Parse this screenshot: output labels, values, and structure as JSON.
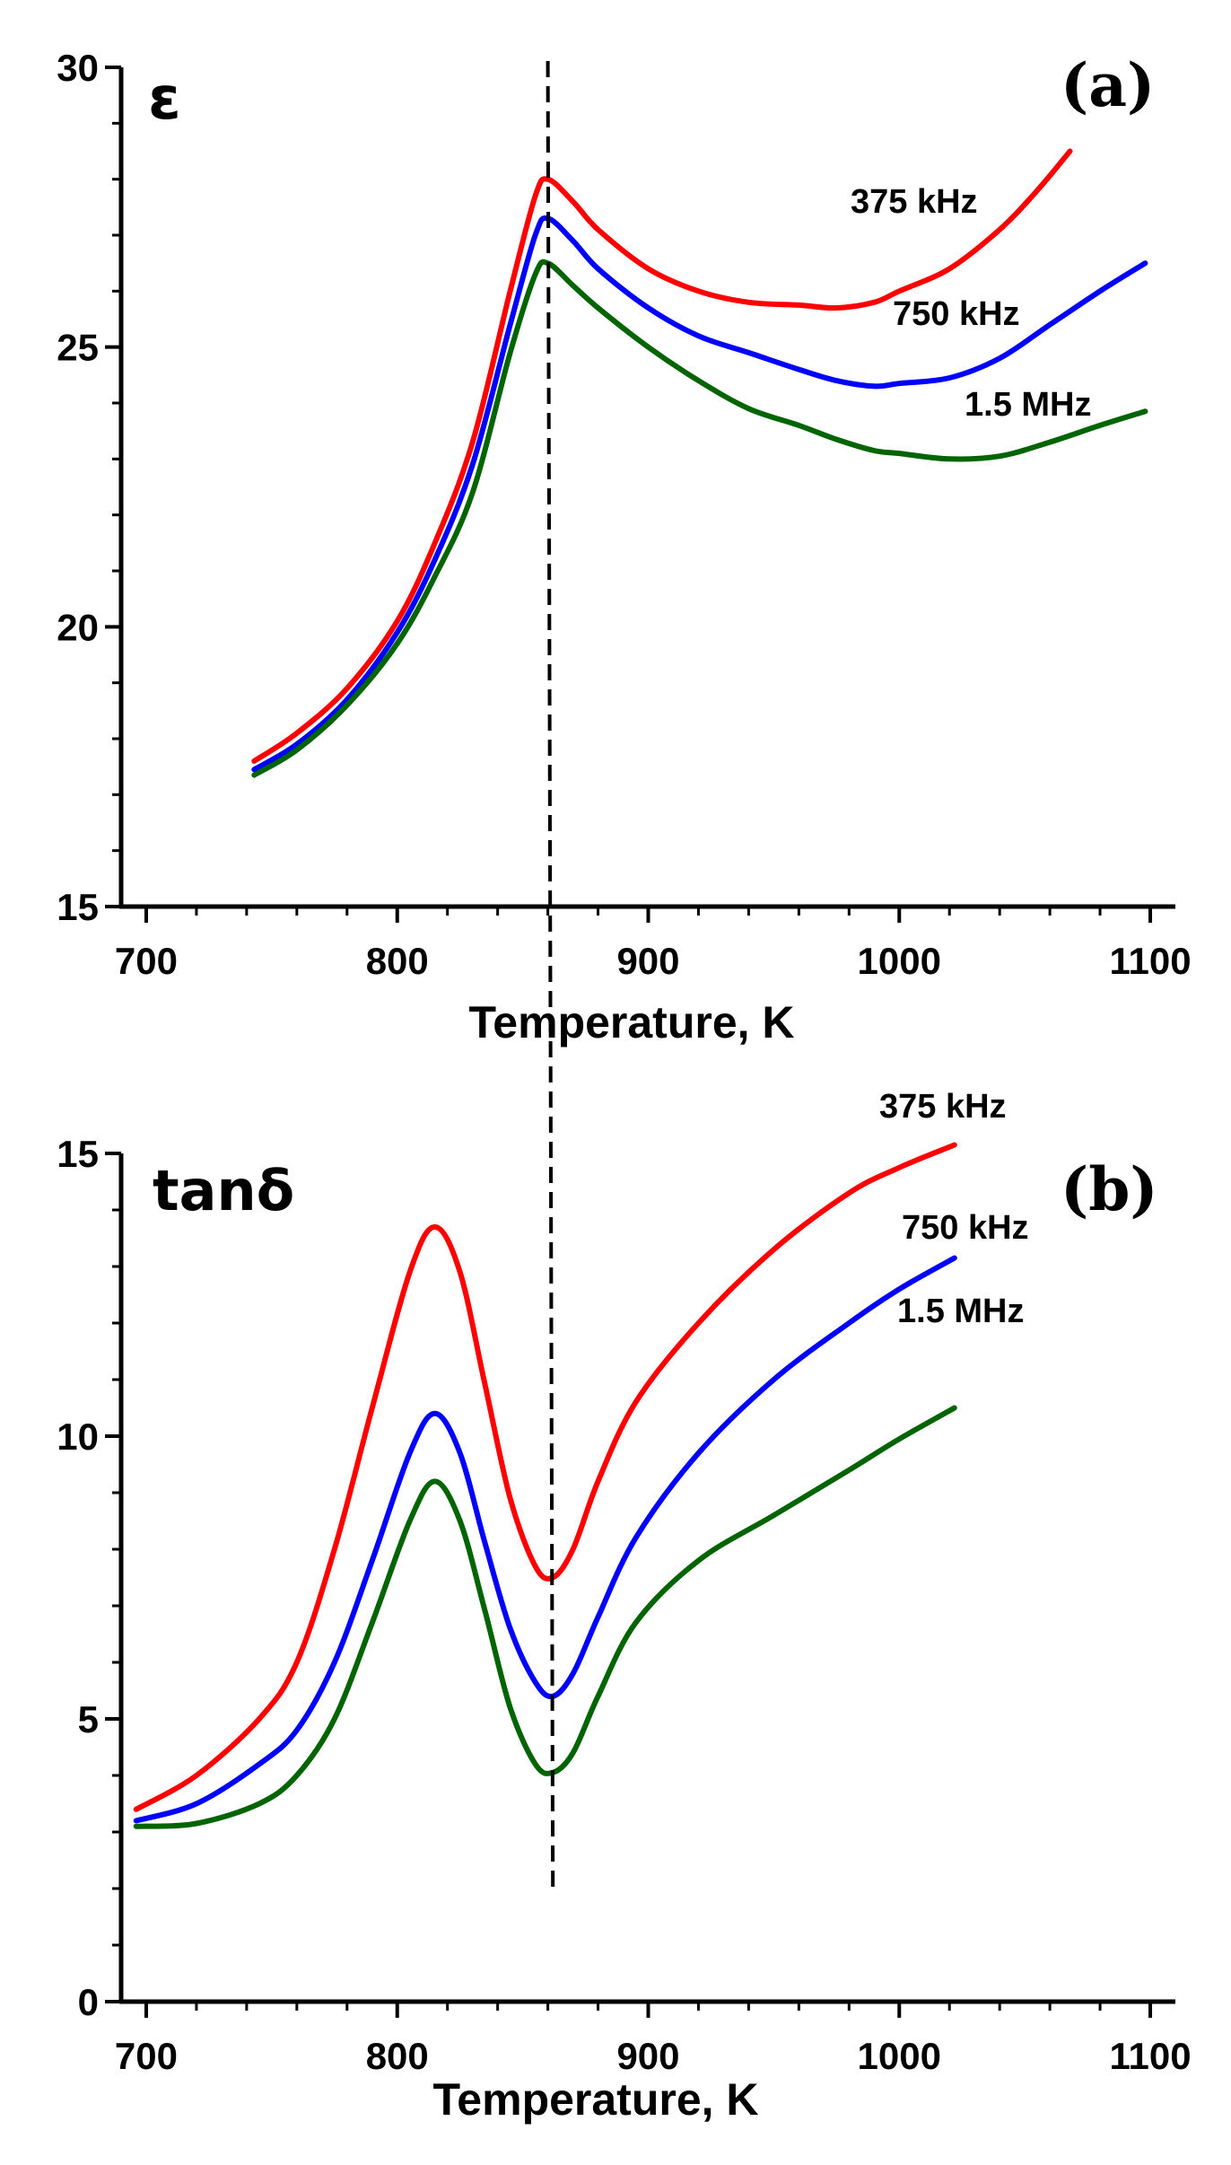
{
  "chart_data": [
    {
      "type": "line",
      "panel": "(a)",
      "ylabel": "ε",
      "xlabel": "Temperature, K",
      "xlim": [
        690,
        1110
      ],
      "ylim": [
        15,
        30
      ],
      "xticks": [
        700,
        800,
        900,
        1000,
        1100
      ],
      "yticks": [
        15,
        20,
        25,
        30
      ],
      "grid": false,
      "legend": "labels next to curves",
      "reference_line_x": 860,
      "series": [
        {
          "name": "375 kHz",
          "color": "#ff0000",
          "x": [
            743,
            760,
            780,
            800,
            815,
            830,
            845,
            855,
            860,
            870,
            880,
            900,
            920,
            940,
            960,
            975,
            990,
            1000,
            1020,
            1040,
            1055,
            1068
          ],
          "y": [
            17.6,
            18.1,
            18.9,
            20.1,
            21.5,
            23.3,
            26.0,
            27.7,
            28.0,
            27.6,
            27.1,
            26.4,
            26.0,
            25.8,
            25.75,
            25.7,
            25.8,
            26.0,
            26.4,
            27.1,
            27.8,
            28.5
          ]
        },
        {
          "name": "750 kHz",
          "color": "#0000ff",
          "x": [
            743,
            760,
            780,
            800,
            815,
            830,
            845,
            855,
            860,
            870,
            880,
            900,
            920,
            940,
            960,
            975,
            990,
            1000,
            1020,
            1040,
            1060,
            1080,
            1098
          ],
          "y": [
            17.45,
            17.9,
            18.7,
            19.9,
            21.2,
            22.9,
            25.4,
            27.0,
            27.3,
            26.9,
            26.4,
            25.7,
            25.2,
            24.9,
            24.6,
            24.4,
            24.3,
            24.35,
            24.45,
            24.8,
            25.4,
            26.0,
            26.5
          ]
        },
        {
          "name": "1.5 MHz",
          "color": "#006400",
          "x": [
            743,
            760,
            780,
            800,
            815,
            830,
            845,
            855,
            860,
            870,
            880,
            900,
            920,
            940,
            960,
            975,
            990,
            1000,
            1020,
            1040,
            1060,
            1080,
            1098
          ],
          "y": [
            17.35,
            17.8,
            18.6,
            19.7,
            20.9,
            22.4,
            24.9,
            26.3,
            26.5,
            26.1,
            25.7,
            25.0,
            24.4,
            23.9,
            23.6,
            23.35,
            23.15,
            23.1,
            23.0,
            23.05,
            23.3,
            23.6,
            23.85
          ]
        }
      ]
    },
    {
      "type": "line",
      "panel": "(b)",
      "ylabel": "tanδ",
      "xlabel": "Temperature, K",
      "xlim": [
        690,
        1110
      ],
      "ylim": [
        0,
        15
      ],
      "xticks": [
        700,
        800,
        900,
        1000,
        1100
      ],
      "yticks": [
        0,
        5,
        10,
        15
      ],
      "grid": false,
      "legend": "labels next to curves",
      "reference_line_x": 862,
      "series": [
        {
          "name": "375 kHz",
          "color": "#ff0000",
          "x": [
            696,
            720,
            745,
            760,
            775,
            790,
            805,
            815,
            825,
            835,
            845,
            855,
            862,
            870,
            880,
            895,
            920,
            950,
            980,
            1000,
            1022
          ],
          "y": [
            3.4,
            4.0,
            5.0,
            6.0,
            8.0,
            10.5,
            12.9,
            13.7,
            12.9,
            10.9,
            8.9,
            7.7,
            7.5,
            8.0,
            9.2,
            10.6,
            12.0,
            13.3,
            14.3,
            14.75,
            15.15
          ]
        },
        {
          "name": "750 kHz",
          "color": "#0000ff",
          "x": [
            696,
            720,
            745,
            760,
            775,
            790,
            805,
            815,
            825,
            835,
            845,
            855,
            862,
            870,
            880,
            895,
            920,
            950,
            980,
            1000,
            1022
          ],
          "y": [
            3.2,
            3.5,
            4.2,
            4.8,
            6.0,
            7.8,
            9.7,
            10.4,
            9.7,
            8.1,
            6.6,
            5.65,
            5.4,
            5.8,
            6.8,
            8.2,
            9.7,
            11.0,
            12.0,
            12.6,
            13.15
          ]
        },
        {
          "name": "1.5 MHz",
          "color": "#006400",
          "x": [
            696,
            720,
            745,
            760,
            775,
            790,
            805,
            815,
            825,
            835,
            845,
            855,
            862,
            870,
            880,
            895,
            920,
            950,
            980,
            1000,
            1022
          ],
          "y": [
            3.1,
            3.15,
            3.5,
            4.0,
            5.0,
            6.7,
            8.5,
            9.2,
            8.5,
            6.9,
            5.2,
            4.2,
            4.05,
            4.4,
            5.4,
            6.7,
            7.8,
            8.6,
            9.4,
            9.95,
            10.5
          ]
        }
      ]
    }
  ]
}
